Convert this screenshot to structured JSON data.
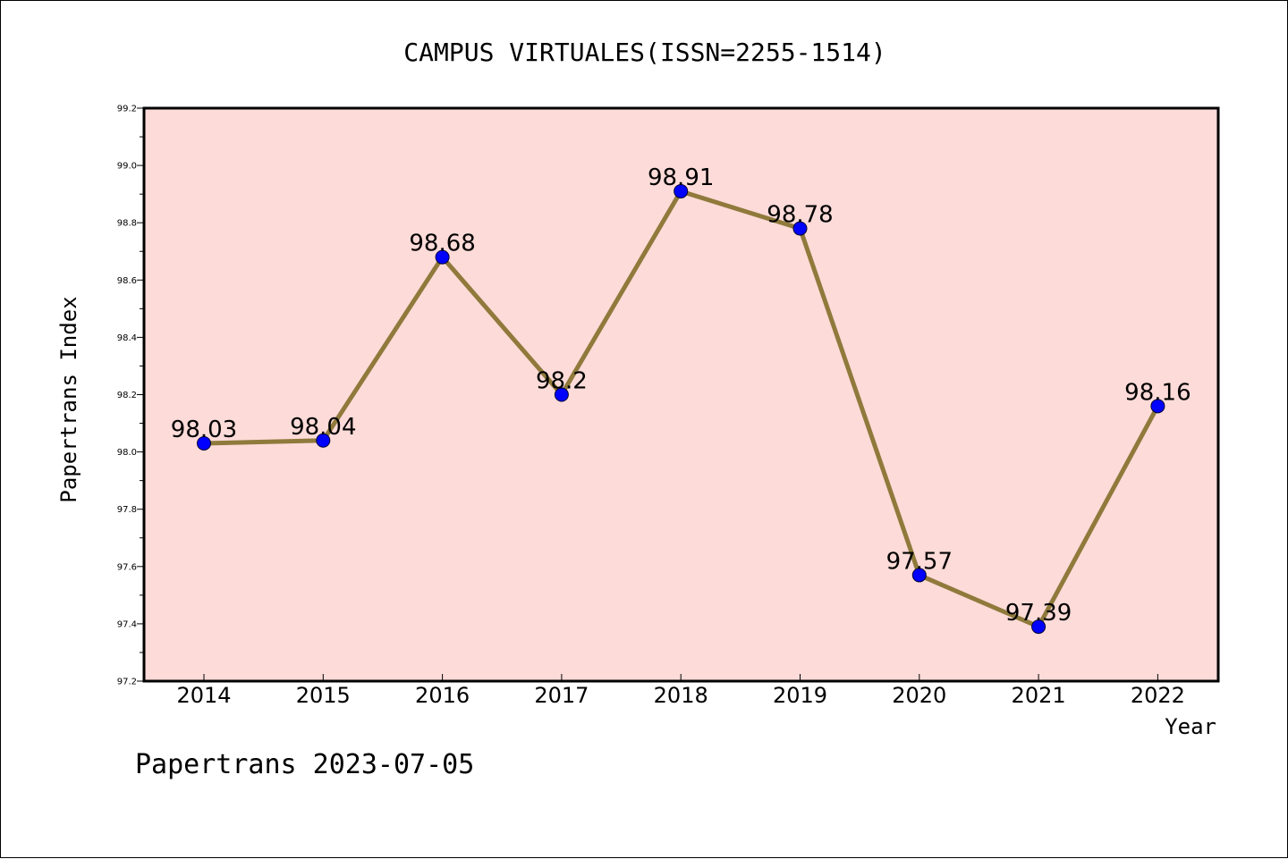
{
  "footer": "Papertrans 2023-07-05",
  "colors": {
    "plot_background": "#fddbd8",
    "line": "#8f7a3c",
    "marker": "#0000ff",
    "axis": "#000000"
  },
  "chart_data": {
    "type": "line",
    "title": "CAMPUS VIRTUALES(ISSN=2255-1514)",
    "xlabel": "Year",
    "ylabel": "Papertrans Index",
    "categories": [
      "2014",
      "2015",
      "2016",
      "2017",
      "2018",
      "2019",
      "2020",
      "2021",
      "2022"
    ],
    "series": [
      {
        "values": [
          98.03,
          98.04,
          98.68,
          98.2,
          98.91,
          98.78,
          97.57,
          97.39,
          98.16
        ],
        "labels": [
          "98.03",
          "98.04",
          "98.68",
          "98.2",
          "98.91",
          "98.78",
          "97.57",
          "97.39",
          "98.16"
        ]
      }
    ],
    "ylim": [
      97.2,
      99.2
    ],
    "yticks": [
      "97.2",
      "97.4",
      "97.6",
      "97.8",
      "98.0",
      "98.2",
      "98.4",
      "98.6",
      "98.8",
      "99.0",
      "99.2"
    ],
    "grid": false,
    "legend": "none"
  }
}
